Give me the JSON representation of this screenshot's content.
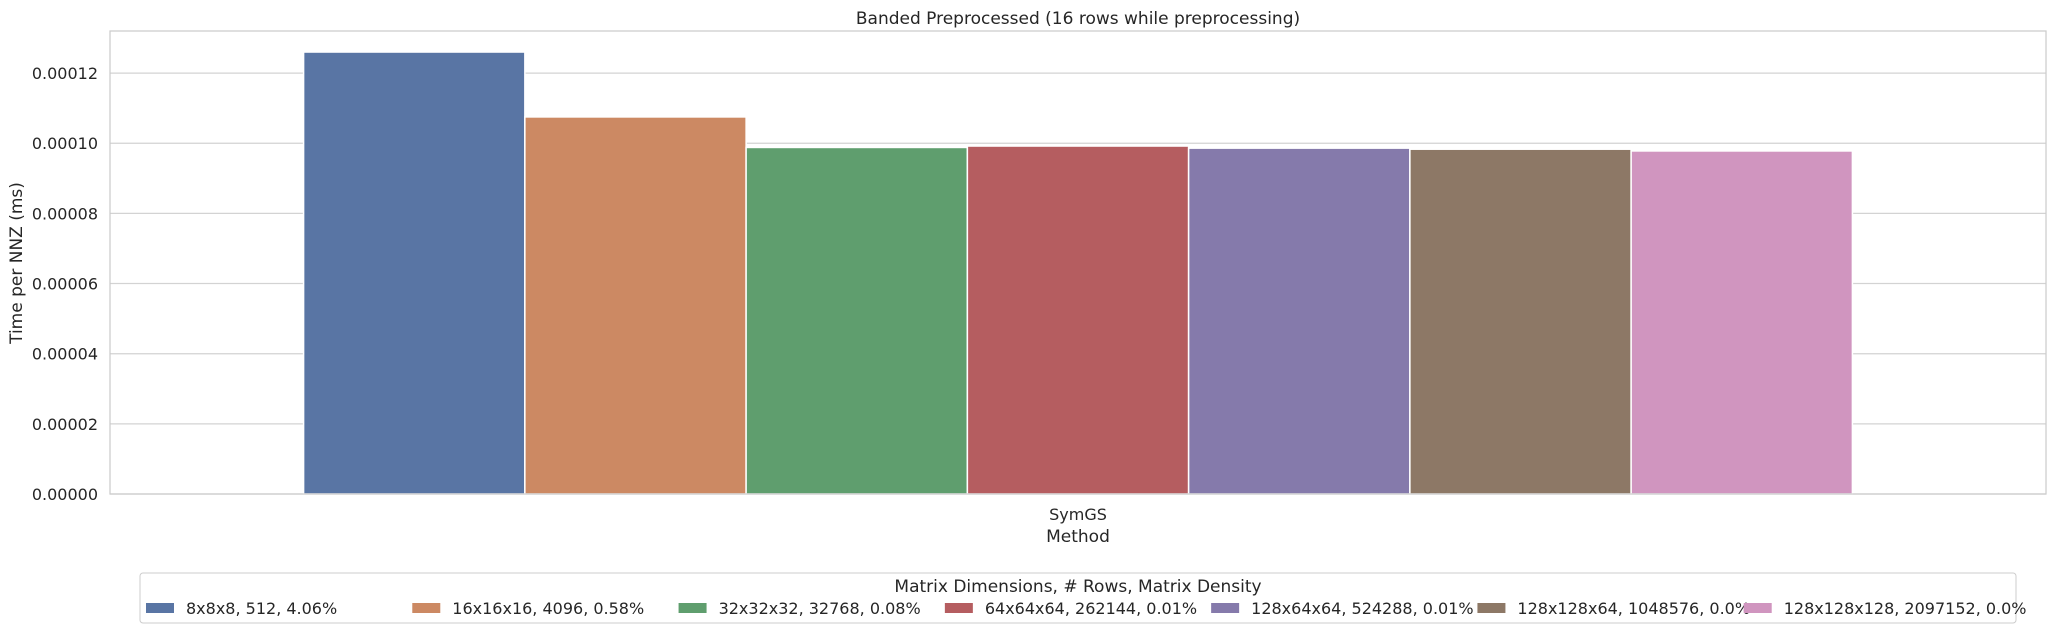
{
  "chart_data": {
    "type": "bar",
    "title": "Banded Preprocessed (16 rows while preprocessing)",
    "xlabel": "Method",
    "ylabel": "Time per NNZ (ms)",
    "categories": [
      "SymGS"
    ],
    "ylim": [
      0,
      0.000132
    ],
    "yticks": [
      "0.00000",
      "0.00002",
      "0.00004",
      "0.00006",
      "0.00008",
      "0.00010",
      "0.00012"
    ],
    "ytick_values": [
      0,
      2e-05,
      4e-05,
      6e-05,
      8e-05,
      0.0001,
      0.00012
    ],
    "grid": true,
    "legend_title": "Matrix Dimensions, # Rows, Matrix Density",
    "legend_position": "bottom",
    "series": [
      {
        "name": "8x8x8, 512, 4.06%",
        "values": [
          0.000126
        ],
        "color": "#5975a4"
      },
      {
        "name": "16x16x16, 4096, 0.58%",
        "values": [
          0.0001075
        ],
        "color": "#cc8963"
      },
      {
        "name": "32x32x32, 32768, 0.08%",
        "values": [
          9.88e-05
        ],
        "color": "#5f9e6e"
      },
      {
        "name": "64x64x64, 262144, 0.01%",
        "values": [
          9.92e-05
        ],
        "color": "#b55d60"
      },
      {
        "name": "128x64x64, 524288, 0.01%",
        "values": [
          9.86e-05
        ],
        "color": "#857aab"
      },
      {
        "name": "128x128x64, 1048576, 0.0%",
        "values": [
          9.83e-05
        ],
        "color": "#8d7866"
      },
      {
        "name": "128x128x128, 2097152, 0.0%",
        "values": [
          9.78e-05
        ],
        "color": "#d095bf"
      }
    ]
  }
}
